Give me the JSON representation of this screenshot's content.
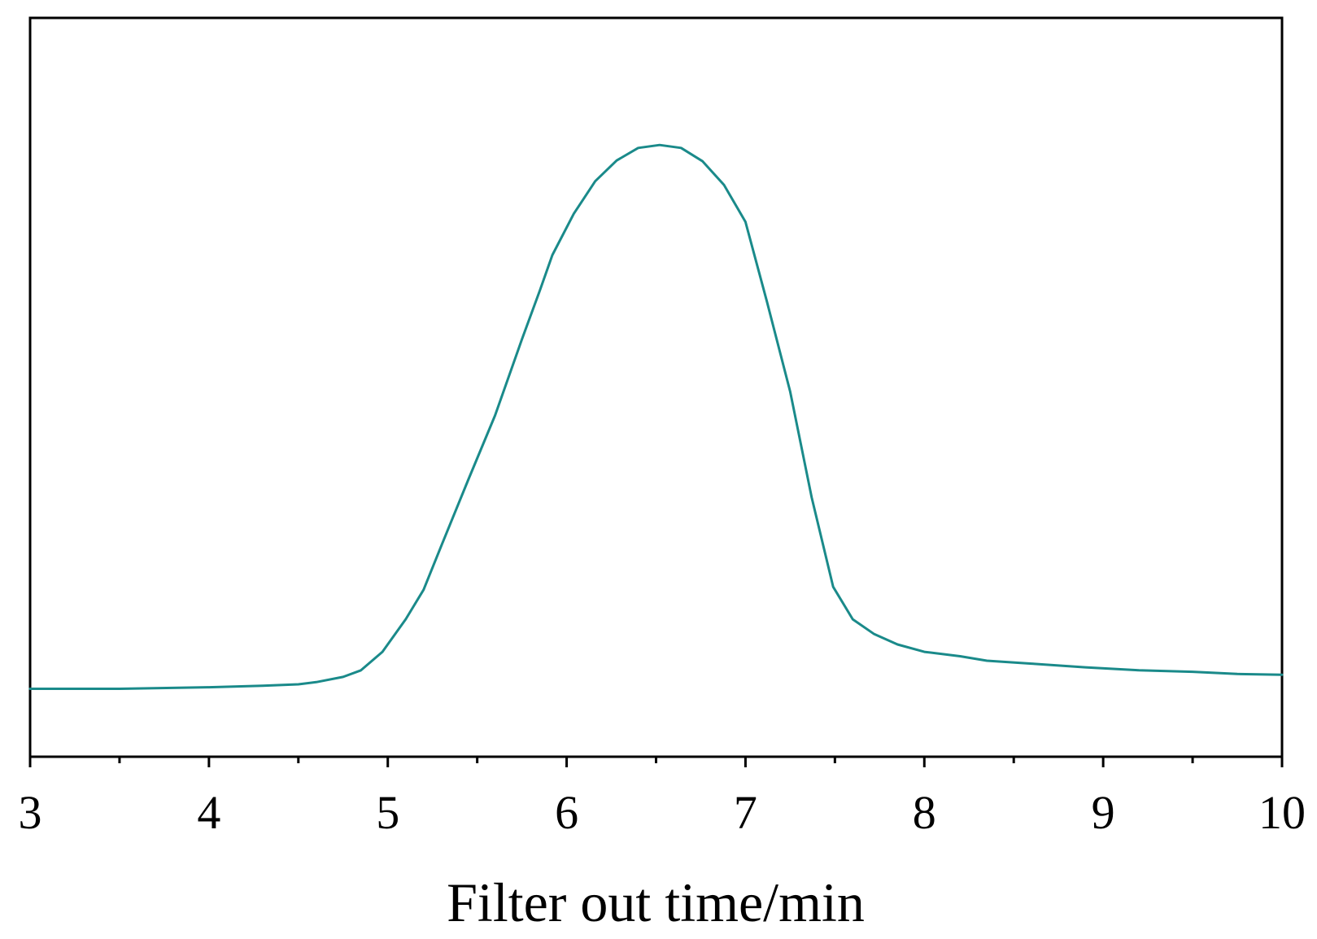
{
  "chart_data": {
    "type": "line",
    "title": "",
    "xlabel": "Filter out time/min",
    "ylabel": "",
    "xlim": [
      3,
      10
    ],
    "ylim": [
      0,
      100
    ],
    "grid": false,
    "x_major_ticks": [
      3,
      4,
      5,
      6,
      7,
      8,
      9,
      10
    ],
    "x_tick_labels": [
      "3",
      "4",
      "5",
      "6",
      "7",
      "8",
      "9",
      "10"
    ],
    "x_minor_ticks": [
      3.5,
      4.5,
      5.5,
      6.5,
      7.5,
      8.5,
      9.5
    ],
    "line_color": "#1a8a8a",
    "series": [
      {
        "values": [
          [
            3.0,
            9.2
          ],
          [
            3.5,
            9.2
          ],
          [
            4.0,
            9.4
          ],
          [
            4.3,
            9.6
          ],
          [
            4.5,
            9.8
          ],
          [
            4.6,
            10.1
          ],
          [
            4.75,
            10.8
          ],
          [
            4.85,
            11.7
          ],
          [
            4.97,
            14.2
          ],
          [
            5.1,
            18.6
          ],
          [
            5.2,
            22.6
          ],
          [
            5.3,
            28.6
          ],
          [
            5.45,
            37.5
          ],
          [
            5.6,
            46.2
          ],
          [
            5.75,
            56.5
          ],
          [
            5.85,
            63.1
          ],
          [
            5.92,
            67.9
          ],
          [
            6.04,
            73.5
          ],
          [
            6.16,
            77.9
          ],
          [
            6.28,
            80.7
          ],
          [
            6.4,
            82.4
          ],
          [
            6.52,
            82.8
          ],
          [
            6.64,
            82.4
          ],
          [
            6.76,
            80.6
          ],
          [
            6.88,
            77.4
          ],
          [
            7.0,
            72.4
          ],
          [
            7.12,
            61.6
          ],
          [
            7.25,
            49.4
          ],
          [
            7.37,
            35.1
          ],
          [
            7.49,
            23.0
          ],
          [
            7.6,
            18.6
          ],
          [
            7.72,
            16.6
          ],
          [
            7.85,
            15.2
          ],
          [
            8.0,
            14.2
          ],
          [
            8.2,
            13.6
          ],
          [
            8.35,
            13.0
          ],
          [
            8.6,
            12.6
          ],
          [
            8.9,
            12.1
          ],
          [
            9.2,
            11.7
          ],
          [
            9.5,
            11.5
          ],
          [
            9.75,
            11.2
          ],
          [
            10.0,
            11.1
          ]
        ]
      }
    ]
  }
}
